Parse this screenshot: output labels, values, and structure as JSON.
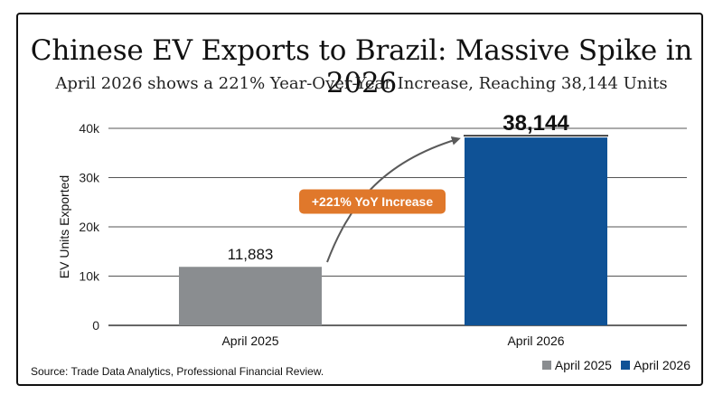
{
  "chart_data": {
    "type": "bar",
    "title": "Chinese EV Exports to Brazil: Massive Spike in 2026",
    "subtitle": "April 2026 shows a 221% Year-Over-Year Increase, Reaching 38,144 Units",
    "categories": [
      "April 2025",
      "April 2026"
    ],
    "values": [
      11883,
      38144
    ],
    "value_labels": [
      "11,883",
      "38,144"
    ],
    "colors": [
      "#8a8d90",
      "#0f5296"
    ],
    "ylabel": "EV Units Exported",
    "xlabel": "",
    "ylim": [
      0,
      40000
    ],
    "yticks": [
      0,
      10000,
      20000,
      30000,
      40000
    ],
    "ytick_labels": [
      "0",
      "10k",
      "20k",
      "30k",
      "40k"
    ],
    "grid": true,
    "annotation": {
      "text": "+221% YoY Increase",
      "color": "#e0782b"
    },
    "legend": {
      "position": "bottom-right",
      "entries": [
        "April 2025",
        "April 2026"
      ]
    },
    "source": "Source: Trade Data Analytics, Professional Financial Review."
  }
}
